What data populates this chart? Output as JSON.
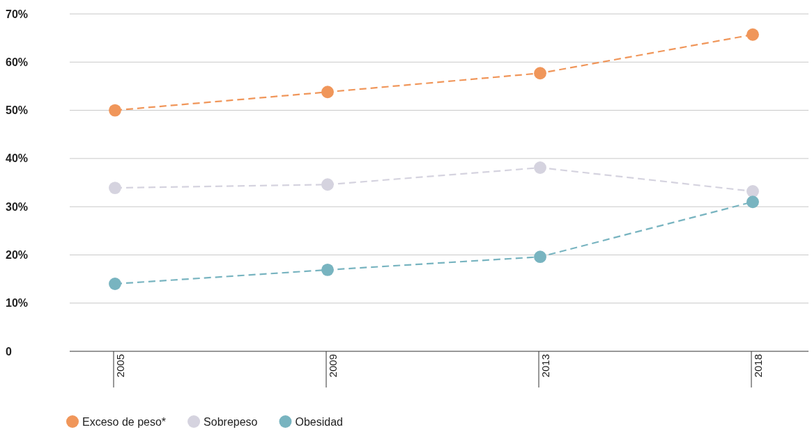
{
  "chart_data": {
    "type": "line",
    "categories": [
      "2005",
      "2009",
      "2013",
      "2018"
    ],
    "series": [
      {
        "name": "Exceso de peso*",
        "color": "#f0965a",
        "values": [
          50,
          53.8,
          57.7,
          65.7
        ]
      },
      {
        "name": "Sobrepeso",
        "color": "#d5d3df",
        "values": [
          33.9,
          34.6,
          38.1,
          33.2
        ]
      },
      {
        "name": "Obesidad",
        "color": "#78b4c0",
        "values": [
          14,
          16.9,
          19.6,
          31
        ]
      }
    ],
    "ylim": [
      0,
      70
    ],
    "yticks": [
      {
        "value": 0,
        "label": "0"
      },
      {
        "value": 10,
        "label": "10%"
      },
      {
        "value": 20,
        "label": "20%"
      },
      {
        "value": 30,
        "label": "30%"
      },
      {
        "value": 40,
        "label": "40%"
      },
      {
        "value": 50,
        "label": "50%"
      },
      {
        "value": 60,
        "label": "60%"
      },
      {
        "value": 70,
        "label": "70%"
      }
    ],
    "grid": "y",
    "legend": "bottom",
    "marker": "circle",
    "line_style": "dashed"
  }
}
